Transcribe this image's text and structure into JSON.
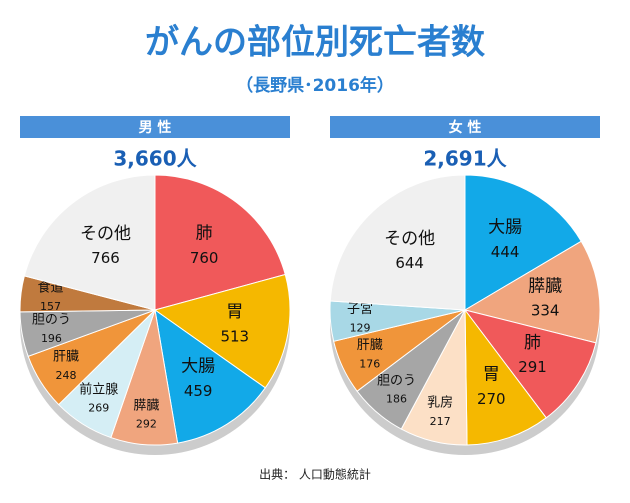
{
  "title": "がんの部位別死亡者数",
  "subtitle": "（長野県･2016年）",
  "source": "出典： 人口動態統計",
  "chart_data": [
    {
      "type": "pie",
      "title": "男 性",
      "total": "3,660人",
      "categories": [
        "肺",
        "胃",
        "大腸",
        "膵臓",
        "前立腺",
        "肝臓",
        "胆のう",
        "食道",
        "その他"
      ],
      "values": [
        760,
        513,
        459,
        292,
        269,
        248,
        196,
        157,
        766
      ],
      "colors": [
        "#f0595a",
        "#f5b800",
        "#12a9e8",
        "#f0a57e",
        "#d5eef5",
        "#f0953a",
        "#a6a6a6",
        "#c07a3e",
        "#f0f0f0"
      ]
    },
    {
      "type": "pie",
      "title": "女 性",
      "total": "2,691人",
      "categories": [
        "大腸",
        "膵臓",
        "肺",
        "胃",
        "乳房",
        "胆のう",
        "肝臓",
        "子宮",
        "その他"
      ],
      "values": [
        444,
        334,
        291,
        270,
        217,
        186,
        176,
        129,
        644
      ],
      "colors": [
        "#12a9e8",
        "#f0a57e",
        "#f0595a",
        "#f5b800",
        "#fce0c6",
        "#a6a6a6",
        "#f0953a",
        "#a8d8e6",
        "#f0f0f0"
      ]
    }
  ]
}
